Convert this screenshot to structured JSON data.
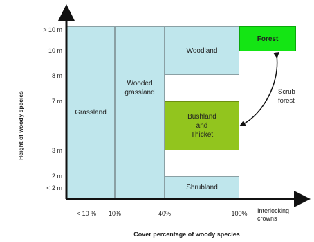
{
  "axes": {
    "y_label": "Height of woody species",
    "x_label": "Cover percentage of woody species",
    "y_ticks": [
      "> 10 m",
      "10 m",
      "8 m",
      "7 m",
      "3 m",
      "2 m",
      "< 2 m"
    ],
    "x_ticks": [
      "< 10 %",
      "10%",
      "40%",
      "100%"
    ],
    "x_end_label": "Interlocking\ncrowns"
  },
  "regions": {
    "grassland": "Grassland",
    "wooded_grassland": "Wooded\ngrassland",
    "woodland": "Woodland",
    "bushland": "Bushland\nand\nThicket",
    "shrubland": "Shrubland",
    "forest": "Forest"
  },
  "annotation": {
    "scrub_forest": "Scrub\nforest"
  },
  "colors": {
    "light_blue": "#bfe6ec",
    "olive_green": "#92c51e",
    "bright_green": "#14e514",
    "axis": "#111111"
  }
}
